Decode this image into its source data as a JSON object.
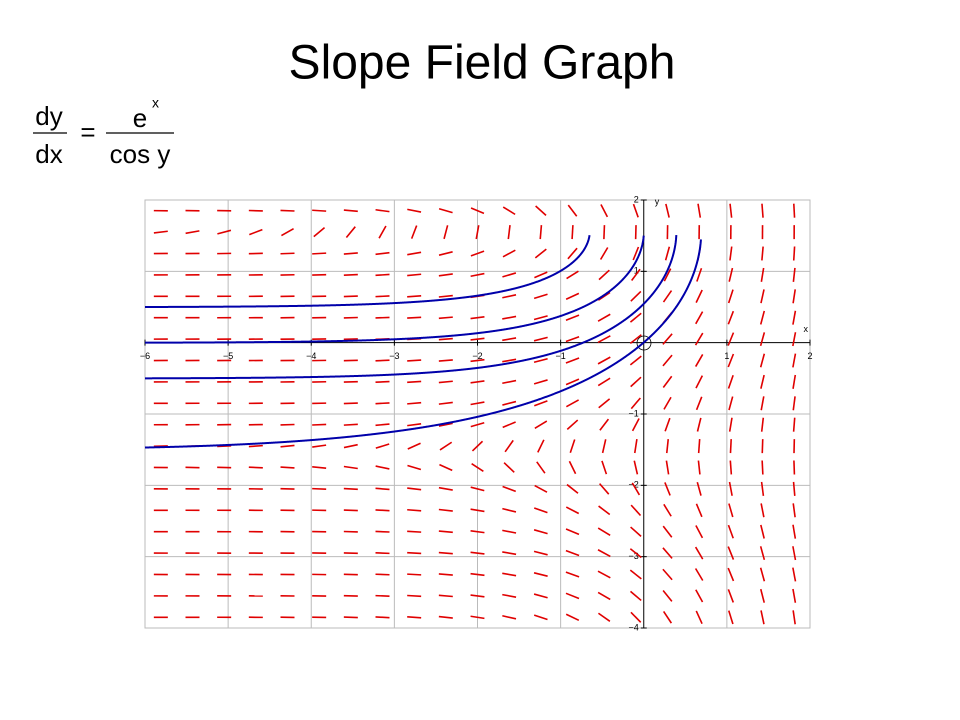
{
  "title": "Slope Field Graph",
  "equation": {
    "numerator_left": "dy",
    "denominator_left": "dx",
    "equals": "=",
    "numerator_right": "e",
    "exponent": "x",
    "denominator_right": "cos y"
  },
  "chart_data": {
    "type": "slopefield",
    "x_label": "x",
    "y_label": "y",
    "xlim": [
      -6,
      2
    ],
    "ylim": [
      -4,
      2
    ],
    "xticks": [
      {
        "value": -6,
        "label": "−6"
      },
      {
        "value": -5,
        "label": "−5"
      },
      {
        "value": -4,
        "label": "−4"
      },
      {
        "value": -3,
        "label": "−3"
      },
      {
        "value": -2,
        "label": "−2"
      },
      {
        "value": -1,
        "label": "−1"
      },
      1,
      2
    ],
    "yticks": [
      2,
      1,
      {
        "value": -1,
        "label": "−1"
      },
      {
        "value": -2,
        "label": "−2"
      },
      {
        "value": -3,
        "label": "−3"
      },
      {
        "value": -4,
        "label": "−4"
      }
    ],
    "grid": true,
    "field_color": "#e00000",
    "curve_color": "#0000aa",
    "curves_y_at_xmin": [
      0.5,
      0,
      -0.5,
      -1.47
    ]
  }
}
